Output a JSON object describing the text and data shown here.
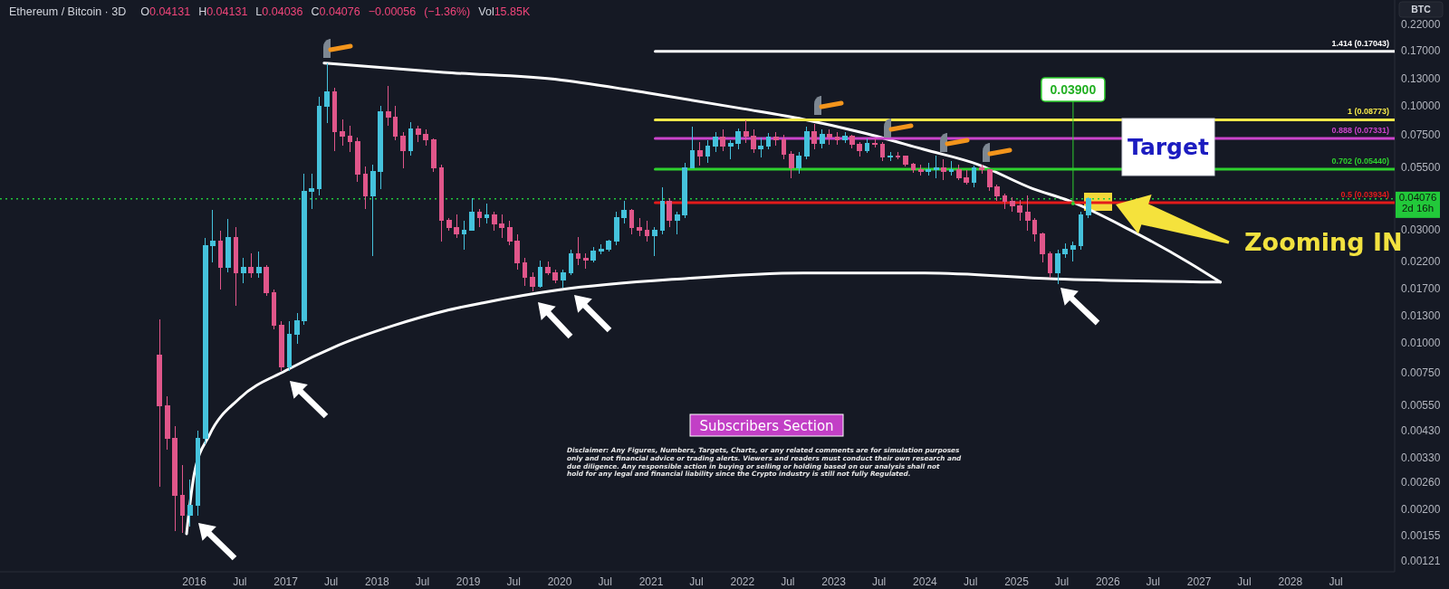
{
  "chart_data": {
    "type": "candlestick",
    "title": "Ethereum / Bitcoin · 3D",
    "subtitle": "O0.04131 H0.04131 L0.04036 C0.04076 −0.00056 (−1.36%) Vol15.85K",
    "ylabel": "BTC",
    "log": "y",
    "xlim": [
      "2013-11-15",
      "2029-02-21"
    ],
    "ylim": [
      0.0011,
      0.28
    ],
    "xticks": [
      {
        "value": "2016-01-01",
        "label": "2016"
      },
      {
        "value": "2016-07-01",
        "label": "Jul"
      },
      {
        "value": "2017-01-01",
        "label": "2017"
      },
      {
        "value": "2017-07-01",
        "label": "Jul"
      },
      {
        "value": "2018-01-01",
        "label": "2018"
      },
      {
        "value": "2018-07-01",
        "label": "Jul"
      },
      {
        "value": "2019-01-01",
        "label": "2019"
      },
      {
        "value": "2019-07-01",
        "label": "Jul"
      },
      {
        "value": "2020-01-01",
        "label": "2020"
      },
      {
        "value": "2020-07-01",
        "label": "Jul"
      },
      {
        "value": "2021-01-01",
        "label": "2021"
      },
      {
        "value": "2021-07-01",
        "label": "Jul"
      },
      {
        "value": "2022-01-01",
        "label": "2022"
      },
      {
        "value": "2022-07-01",
        "label": "Jul"
      },
      {
        "value": "2023-01-01",
        "label": "2023"
      },
      {
        "value": "2023-07-01",
        "label": "Jul"
      },
      {
        "value": "2024-01-01",
        "label": "2024"
      },
      {
        "value": "2024-07-01",
        "label": "Jul"
      },
      {
        "value": "2025-01-01",
        "label": "2025"
      },
      {
        "value": "2025-07-01",
        "label": "Jul"
      },
      {
        "value": "2026-01-01",
        "label": "2026"
      },
      {
        "value": "2026-07-01",
        "label": "Jul"
      },
      {
        "value": "2027-01-01",
        "label": "2027"
      },
      {
        "value": "2027-07-01",
        "label": "Jul"
      },
      {
        "value": "2028-01-01",
        "label": "2028"
      },
      {
        "value": "2028-07-01",
        "label": "Jul"
      }
    ],
    "yticks": [
      {
        "value": 0.22,
        "label": "0.22000"
      },
      {
        "value": 0.17,
        "label": "0.17000"
      },
      {
        "value": 0.13,
        "label": "0.13000"
      },
      {
        "value": 0.1,
        "label": "0.10000"
      },
      {
        "value": 0.075,
        "label": "0.07500"
      },
      {
        "value": 0.055,
        "label": "0.05500"
      },
      {
        "value": 0.03,
        "label": "0.03000"
      },
      {
        "value": 0.022,
        "label": "0.02200"
      },
      {
        "value": 0.017,
        "label": "0.01700"
      },
      {
        "value": 0.013,
        "label": "0.01300"
      },
      {
        "value": 0.01,
        "label": "0.01000"
      },
      {
        "value": 0.0075,
        "label": "0.00750"
      },
      {
        "value": 0.0055,
        "label": "0.00550"
      },
      {
        "value": 0.0043,
        "label": "0.00430"
      },
      {
        "value": 0.0033,
        "label": "0.00330"
      },
      {
        "value": 0.0026,
        "label": "0.00260"
      },
      {
        "value": 0.002,
        "label": "0.00200"
      },
      {
        "value": 0.00155,
        "label": "0.00155"
      },
      {
        "value": 0.00121,
        "label": "0.00121"
      }
    ],
    "x": [
      "2015-08-15",
      "2015-09-15",
      "2015-10-15",
      "2015-11-15",
      "2015-12-15",
      "2016-01-15",
      "2016-02-15",
      "2016-03-15",
      "2016-04-15",
      "2016-05-15",
      "2016-06-15",
      "2016-07-15",
      "2016-08-15",
      "2016-09-15",
      "2016-10-15",
      "2016-11-15",
      "2016-12-15",
      "2017-01-15",
      "2017-02-15",
      "2017-03-15",
      "2017-04-15",
      "2017-05-15",
      "2017-06-15",
      "2017-07-15",
      "2017-08-15",
      "2017-09-15",
      "2017-10-15",
      "2017-11-15",
      "2017-12-15",
      "2018-01-15",
      "2018-02-15",
      "2018-03-15",
      "2018-04-15",
      "2018-05-15",
      "2018-06-15",
      "2018-07-15",
      "2018-08-15",
      "2018-09-15",
      "2018-10-15",
      "2018-11-15",
      "2018-12-15",
      "2019-01-15",
      "2019-02-15",
      "2019-03-15",
      "2019-04-15",
      "2019-05-15",
      "2019-06-15",
      "2019-07-15",
      "2019-08-15",
      "2019-09-15",
      "2019-10-15",
      "2019-11-15",
      "2019-12-15",
      "2020-01-15",
      "2020-02-15",
      "2020-03-15",
      "2020-04-15",
      "2020-05-15",
      "2020-06-15",
      "2020-07-15",
      "2020-08-15",
      "2020-09-15",
      "2020-10-15",
      "2020-11-15",
      "2020-12-15",
      "2021-01-15",
      "2021-02-15",
      "2021-03-15",
      "2021-04-15",
      "2021-05-15",
      "2021-06-15",
      "2021-07-15",
      "2021-08-15",
      "2021-09-15",
      "2021-10-15",
      "2021-11-15",
      "2021-12-15",
      "2022-01-15",
      "2022-02-15",
      "2022-03-15",
      "2022-04-15",
      "2022-05-15",
      "2022-06-15",
      "2022-07-15",
      "2022-08-15",
      "2022-09-15",
      "2022-10-15",
      "2022-11-15",
      "2022-12-15",
      "2023-01-15",
      "2023-02-15",
      "2023-03-15",
      "2023-04-15",
      "2023-05-15",
      "2023-06-15",
      "2023-07-15",
      "2023-08-15",
      "2023-09-15",
      "2023-10-15",
      "2023-11-15",
      "2023-12-15",
      "2024-01-15",
      "2024-02-15",
      "2024-03-15",
      "2024-04-15",
      "2024-05-15",
      "2024-06-15",
      "2024-07-15",
      "2024-08-15",
      "2024-09-15",
      "2024-10-15",
      "2024-11-15",
      "2024-12-15",
      "2025-01-15",
      "2025-02-15",
      "2025-03-15",
      "2025-04-15",
      "2025-05-15",
      "2025-06-15",
      "2025-07-15",
      "2025-08-15",
      "2025-09-15",
      "2025-10-15"
    ],
    "ohlc": [
      [
        0.009,
        0.0127,
        0.0025,
        0.0055
      ],
      [
        0.0055,
        0.006,
        0.0036,
        0.004
      ],
      [
        0.004,
        0.0045,
        0.00163,
        0.0023
      ],
      [
        0.0023,
        0.0031,
        0.0016,
        0.0019
      ],
      [
        0.0019,
        0.0027,
        0.0017,
        0.0021
      ],
      [
        0.0021,
        0.0043,
        0.0019,
        0.004
      ],
      [
        0.004,
        0.028,
        0.0038,
        0.026
      ],
      [
        0.026,
        0.0365,
        0.022,
        0.027
      ],
      [
        0.027,
        0.03,
        0.017,
        0.021
      ],
      [
        0.021,
        0.0336,
        0.02,
        0.028
      ],
      [
        0.028,
        0.031,
        0.0145,
        0.02
      ],
      [
        0.02,
        0.023,
        0.018,
        0.021
      ],
      [
        0.021,
        0.024,
        0.019,
        0.02
      ],
      [
        0.02,
        0.0245,
        0.019,
        0.021
      ],
      [
        0.021,
        0.0215,
        0.016,
        0.0165
      ],
      [
        0.0165,
        0.017,
        0.0115,
        0.012
      ],
      [
        0.012,
        0.0125,
        0.0077,
        0.008
      ],
      [
        0.008,
        0.0125,
        0.0077,
        0.011
      ],
      [
        0.011,
        0.0135,
        0.01,
        0.0125
      ],
      [
        0.0125,
        0.052,
        0.012,
        0.044
      ],
      [
        0.044,
        0.052,
        0.037,
        0.045
      ],
      [
        0.045,
        0.11,
        0.042,
        0.1
      ],
      [
        0.1,
        0.152,
        0.085,
        0.115
      ],
      [
        0.115,
        0.12,
        0.065,
        0.078
      ],
      [
        0.078,
        0.088,
        0.068,
        0.075
      ],
      [
        0.075,
        0.083,
        0.064,
        0.071
      ],
      [
        0.071,
        0.074,
        0.048,
        0.052
      ],
      [
        0.052,
        0.056,
        0.037,
        0.042
      ],
      [
        0.042,
        0.057,
        0.0234,
        0.053
      ],
      [
        0.053,
        0.1,
        0.045,
        0.095
      ],
      [
        0.095,
        0.122,
        0.083,
        0.09
      ],
      [
        0.09,
        0.1,
        0.072,
        0.075
      ],
      [
        0.075,
        0.078,
        0.055,
        0.065
      ],
      [
        0.065,
        0.086,
        0.062,
        0.08
      ],
      [
        0.08,
        0.083,
        0.071,
        0.076
      ],
      [
        0.076,
        0.08,
        0.068,
        0.072
      ],
      [
        0.072,
        0.073,
        0.053,
        0.055
      ],
      [
        0.055,
        0.057,
        0.027,
        0.033
      ],
      [
        0.033,
        0.034,
        0.03,
        0.031
      ],
      [
        0.031,
        0.035,
        0.028,
        0.029
      ],
      [
        0.029,
        0.033,
        0.025,
        0.03
      ],
      [
        0.03,
        0.041,
        0.03,
        0.036
      ],
      [
        0.036,
        0.037,
        0.031,
        0.034
      ],
      [
        0.034,
        0.039,
        0.032,
        0.035
      ],
      [
        0.035,
        0.036,
        0.03,
        0.032
      ],
      [
        0.032,
        0.035,
        0.028,
        0.031
      ],
      [
        0.031,
        0.033,
        0.026,
        0.027
      ],
      [
        0.027,
        0.029,
        0.0205,
        0.022
      ],
      [
        0.022,
        0.023,
        0.0175,
        0.019
      ],
      [
        0.019,
        0.02,
        0.0166,
        0.0175
      ],
      [
        0.0175,
        0.0225,
        0.0172,
        0.021
      ],
      [
        0.021,
        0.0222,
        0.0195,
        0.02
      ],
      [
        0.02,
        0.0205,
        0.018,
        0.0185
      ],
      [
        0.0185,
        0.0205,
        0.0172,
        0.02
      ],
      [
        0.02,
        0.025,
        0.0195,
        0.024
      ],
      [
        0.024,
        0.0282,
        0.0215,
        0.023
      ],
      [
        0.023,
        0.024,
        0.0208,
        0.0225
      ],
      [
        0.0225,
        0.0256,
        0.022,
        0.0245
      ],
      [
        0.0245,
        0.0262,
        0.0238,
        0.025
      ],
      [
        0.025,
        0.0275,
        0.0245,
        0.027
      ],
      [
        0.027,
        0.036,
        0.026,
        0.034
      ],
      [
        0.034,
        0.0401,
        0.032,
        0.0365
      ],
      [
        0.0365,
        0.037,
        0.029,
        0.031
      ],
      [
        0.031,
        0.034,
        0.0285,
        0.03
      ],
      [
        0.03,
        0.033,
        0.027,
        0.0285
      ],
      [
        0.0285,
        0.031,
        0.0234,
        0.03
      ],
      [
        0.03,
        0.0457,
        0.029,
        0.04
      ],
      [
        0.04,
        0.041,
        0.031,
        0.033
      ],
      [
        0.033,
        0.036,
        0.029,
        0.035
      ],
      [
        0.035,
        0.058,
        0.034,
        0.055
      ],
      [
        0.055,
        0.082,
        0.055,
        0.065
      ],
      [
        0.065,
        0.071,
        0.0561,
        0.062
      ],
      [
        0.062,
        0.072,
        0.058,
        0.068
      ],
      [
        0.068,
        0.078,
        0.064,
        0.074
      ],
      [
        0.074,
        0.08,
        0.065,
        0.068
      ],
      [
        0.068,
        0.072,
        0.06,
        0.07
      ],
      [
        0.07,
        0.081,
        0.066,
        0.078
      ],
      [
        0.078,
        0.087,
        0.07,
        0.075
      ],
      [
        0.075,
        0.08,
        0.0636,
        0.066
      ],
      [
        0.066,
        0.074,
        0.061,
        0.068
      ],
      [
        0.068,
        0.077,
        0.066,
        0.074
      ],
      [
        0.074,
        0.078,
        0.068,
        0.072
      ],
      [
        0.072,
        0.076,
        0.06,
        0.063
      ],
      [
        0.063,
        0.065,
        0.0499,
        0.055
      ],
      [
        0.055,
        0.064,
        0.052,
        0.062
      ],
      [
        0.062,
        0.082,
        0.06,
        0.078
      ],
      [
        0.078,
        0.0845,
        0.066,
        0.07
      ],
      [
        0.07,
        0.08,
        0.0667,
        0.076
      ],
      [
        0.076,
        0.08,
        0.069,
        0.074
      ],
      [
        0.074,
        0.078,
        0.069,
        0.072
      ],
      [
        0.072,
        0.078,
        0.07,
        0.075
      ],
      [
        0.075,
        0.076,
        0.0667,
        0.069
      ],
      [
        0.069,
        0.071,
        0.0616,
        0.065
      ],
      [
        0.065,
        0.073,
        0.0636,
        0.07
      ],
      [
        0.07,
        0.073,
        0.067,
        0.069
      ],
      [
        0.069,
        0.071,
        0.059,
        0.061
      ],
      [
        0.061,
        0.064,
        0.059,
        0.062
      ],
      [
        0.062,
        0.064,
        0.06,
        0.0615
      ],
      [
        0.0615,
        0.062,
        0.056,
        0.057
      ],
      [
        0.057,
        0.058,
        0.0525,
        0.054
      ],
      [
        0.054,
        0.057,
        0.051,
        0.053
      ],
      [
        0.053,
        0.058,
        0.051,
        0.054
      ],
      [
        0.054,
        0.062,
        0.05,
        0.055
      ],
      [
        0.055,
        0.06,
        0.049,
        0.053
      ],
      [
        0.053,
        0.059,
        0.051,
        0.054
      ],
      [
        0.054,
        0.057,
        0.049,
        0.05
      ],
      [
        0.05,
        0.054,
        0.047,
        0.048
      ],
      [
        0.048,
        0.0565,
        0.0457,
        0.055
      ],
      [
        0.055,
        0.057,
        0.052,
        0.054
      ],
      [
        0.054,
        0.0545,
        0.044,
        0.046
      ],
      [
        0.046,
        0.047,
        0.04,
        0.042
      ],
      [
        0.042,
        0.043,
        0.037,
        0.04
      ],
      [
        0.04,
        0.0415,
        0.036,
        0.038
      ],
      [
        0.038,
        0.0405,
        0.033,
        0.036
      ],
      [
        0.036,
        0.042,
        0.03,
        0.033
      ],
      [
        0.033,
        0.034,
        0.027,
        0.029
      ],
      [
        0.029,
        0.0295,
        0.022,
        0.024
      ],
      [
        0.024,
        0.0245,
        0.019,
        0.02
      ],
      [
        0.02,
        0.025,
        0.0179,
        0.024
      ],
      [
        0.024,
        0.0265,
        0.023,
        0.025
      ],
      [
        0.025,
        0.027,
        0.0222,
        0.026
      ],
      [
        0.026,
        0.036,
        0.025,
        0.035
      ],
      [
        0.035,
        0.0416,
        0.034,
        0.04076
      ]
    ],
    "colors": [
      "#e0568a",
      "#e0568a",
      "#e0568a",
      "#e0568a",
      "#45c2dc",
      "#45c2dc",
      "#45c2dc",
      "#45c2dc",
      "#e0568a",
      "#45c2dc",
      "#e0568a",
      "#45c2dc",
      "#e0568a",
      "#45c2dc",
      "#e0568a",
      "#e0568a",
      "#e0568a",
      "#45c2dc",
      "#45c2dc",
      "#45c2dc",
      "#45c2dc",
      "#45c2dc",
      "#45c2dc",
      "#e0568a",
      "#e0568a",
      "#e0568a",
      "#e0568a",
      "#e0568a",
      "#45c2dc",
      "#45c2dc",
      "#e0568a",
      "#e0568a",
      "#e0568a",
      "#45c2dc",
      "#e0568a",
      "#e0568a",
      "#e0568a",
      "#e0568a",
      "#e0568a",
      "#e0568a",
      "#45c2dc",
      "#45c2dc",
      "#e0568a",
      "#45c2dc",
      "#e0568a",
      "#e0568a",
      "#e0568a",
      "#e0568a",
      "#e0568a",
      "#e0568a",
      "#45c2dc",
      "#e0568a",
      "#e0568a",
      "#45c2dc",
      "#45c2dc",
      "#e0568a",
      "#e0568a",
      "#45c2dc",
      "#45c2dc",
      "#45c2dc",
      "#45c2dc",
      "#45c2dc",
      "#e0568a",
      "#e0568a",
      "#e0568a",
      "#45c2dc",
      "#45c2dc",
      "#e0568a",
      "#45c2dc",
      "#45c2dc",
      "#45c2dc",
      "#e0568a",
      "#45c2dc",
      "#45c2dc",
      "#e0568a",
      "#45c2dc",
      "#45c2dc",
      "#e0568a",
      "#e0568a",
      "#45c2dc",
      "#45c2dc",
      "#e0568a",
      "#e0568a",
      "#e0568a",
      "#45c2dc",
      "#45c2dc",
      "#e0568a",
      "#45c2dc",
      "#e0568a",
      "#e0568a",
      "#45c2dc",
      "#e0568a",
      "#e0568a",
      "#45c2dc",
      "#e0568a",
      "#e0568a",
      "#45c2dc",
      "#e0568a",
      "#e0568a",
      "#e0568a",
      "#e0568a",
      "#45c2dc",
      "#45c2dc",
      "#e0568a",
      "#45c2dc",
      "#e0568a",
      "#e0568a",
      "#45c2dc",
      "#e0568a",
      "#e0568a",
      "#e0568a",
      "#e0568a",
      "#e0568a",
      "#e0568a",
      "#e0568a",
      "#e0568a",
      "#e0568a",
      "#e0568a",
      "#45c2dc",
      "#45c2dc",
      "#45c2dc",
      "#45c2dc",
      "#45c2dc"
    ],
    "series": [
      {
        "type": "line",
        "color": "#ffffff",
        "x": [
          "2015-12-01",
          "2016-01-01",
          "2016-03-01",
          "2016-07-01",
          "2017-01-01",
          "2017-08-01",
          "2018-03-01",
          "2018-10-01",
          "2019-03-01",
          "2020-01-01",
          "2021-05-01",
          "2022-09-01",
          "2024-01-01",
          "2025-06-01",
          "2027-03-27"
        ],
        "values": [
          0.00159,
          0.00285,
          0.00413,
          0.00592,
          0.00773,
          0.0099,
          0.0119,
          0.0138,
          0.0149,
          0.0169,
          0.0188,
          0.0199,
          0.0199,
          0.0188,
          0.0182
        ]
      },
      {
        "type": "line",
        "color": "#ffffff",
        "x": [
          "2017-06-03",
          "2018-09-24",
          "2020-01-08",
          "2021-01-05",
          "2022-01-02",
          "2022-08-30",
          "2023-04-28",
          "2023-12-26",
          "2024-07-31",
          "2025-03-05",
          "2025-07-28",
          "2026-03-25",
          "2026-11-21",
          "2027-03-27"
        ],
        "values": [
          0.152,
          0.139,
          0.129,
          0.113,
          0.0977,
          0.0883,
          0.0774,
          0.0659,
          0.0569,
          0.0451,
          0.0401,
          0.0304,
          0.022,
          0.0182
        ]
      },
      {
        "type": "line",
        "name": "1.414 (0.17043)",
        "color": "#ffffff",
        "x": [
          "2021-01-17",
          "2029-02-21"
        ],
        "values": [
          0.17043,
          0.17043
        ]
      },
      {
        "type": "line",
        "name": "1 (0.08773)",
        "color": "#f5e94a",
        "x": [
          "2021-01-17",
          "2029-02-21"
        ],
        "values": [
          0.08773,
          0.08773
        ]
      },
      {
        "type": "line",
        "name": "0.888 (0.07331)",
        "color": "#cc44cc",
        "x": [
          "2021-01-17",
          "2029-02-21"
        ],
        "values": [
          0.07331,
          0.07331
        ]
      },
      {
        "type": "line",
        "name": "0.702 (0.05440)",
        "color": "#2ed12e",
        "x": [
          "2021-01-17",
          "2029-02-21"
        ],
        "values": [
          0.0544,
          0.0544
        ]
      },
      {
        "type": "line",
        "name": "0.5 (0.03934)",
        "color": "#e31b1b",
        "x": [
          "2021-01-17",
          "2029-02-21"
        ],
        "values": [
          0.03934,
          0.03934
        ]
      }
    ],
    "ref_lines": [
      {
        "axis": "y",
        "value": 0.04076,
        "label": "0.04076 2d 16h",
        "color": "#22c93a",
        "line_style": "dotted"
      }
    ],
    "annotations": [
      {
        "text": "0.03900",
        "x": "2025-08-15",
        "y": 0.039
      },
      "Target",
      "Zooming IN",
      "Subscribers Section",
      "Disclaimer: Any Figures, Numbers, Targets, Charts, or any related comments are for simulation purposes only and not financial advice or trading alerts. Viewers and readers must conduct their own research and due diligence. Any responsible action in buying or selling or holding based on our analysis shall not hold for any legal and financial liability since the Crypto industry is still not fully Regulated."
    ]
  }
}
